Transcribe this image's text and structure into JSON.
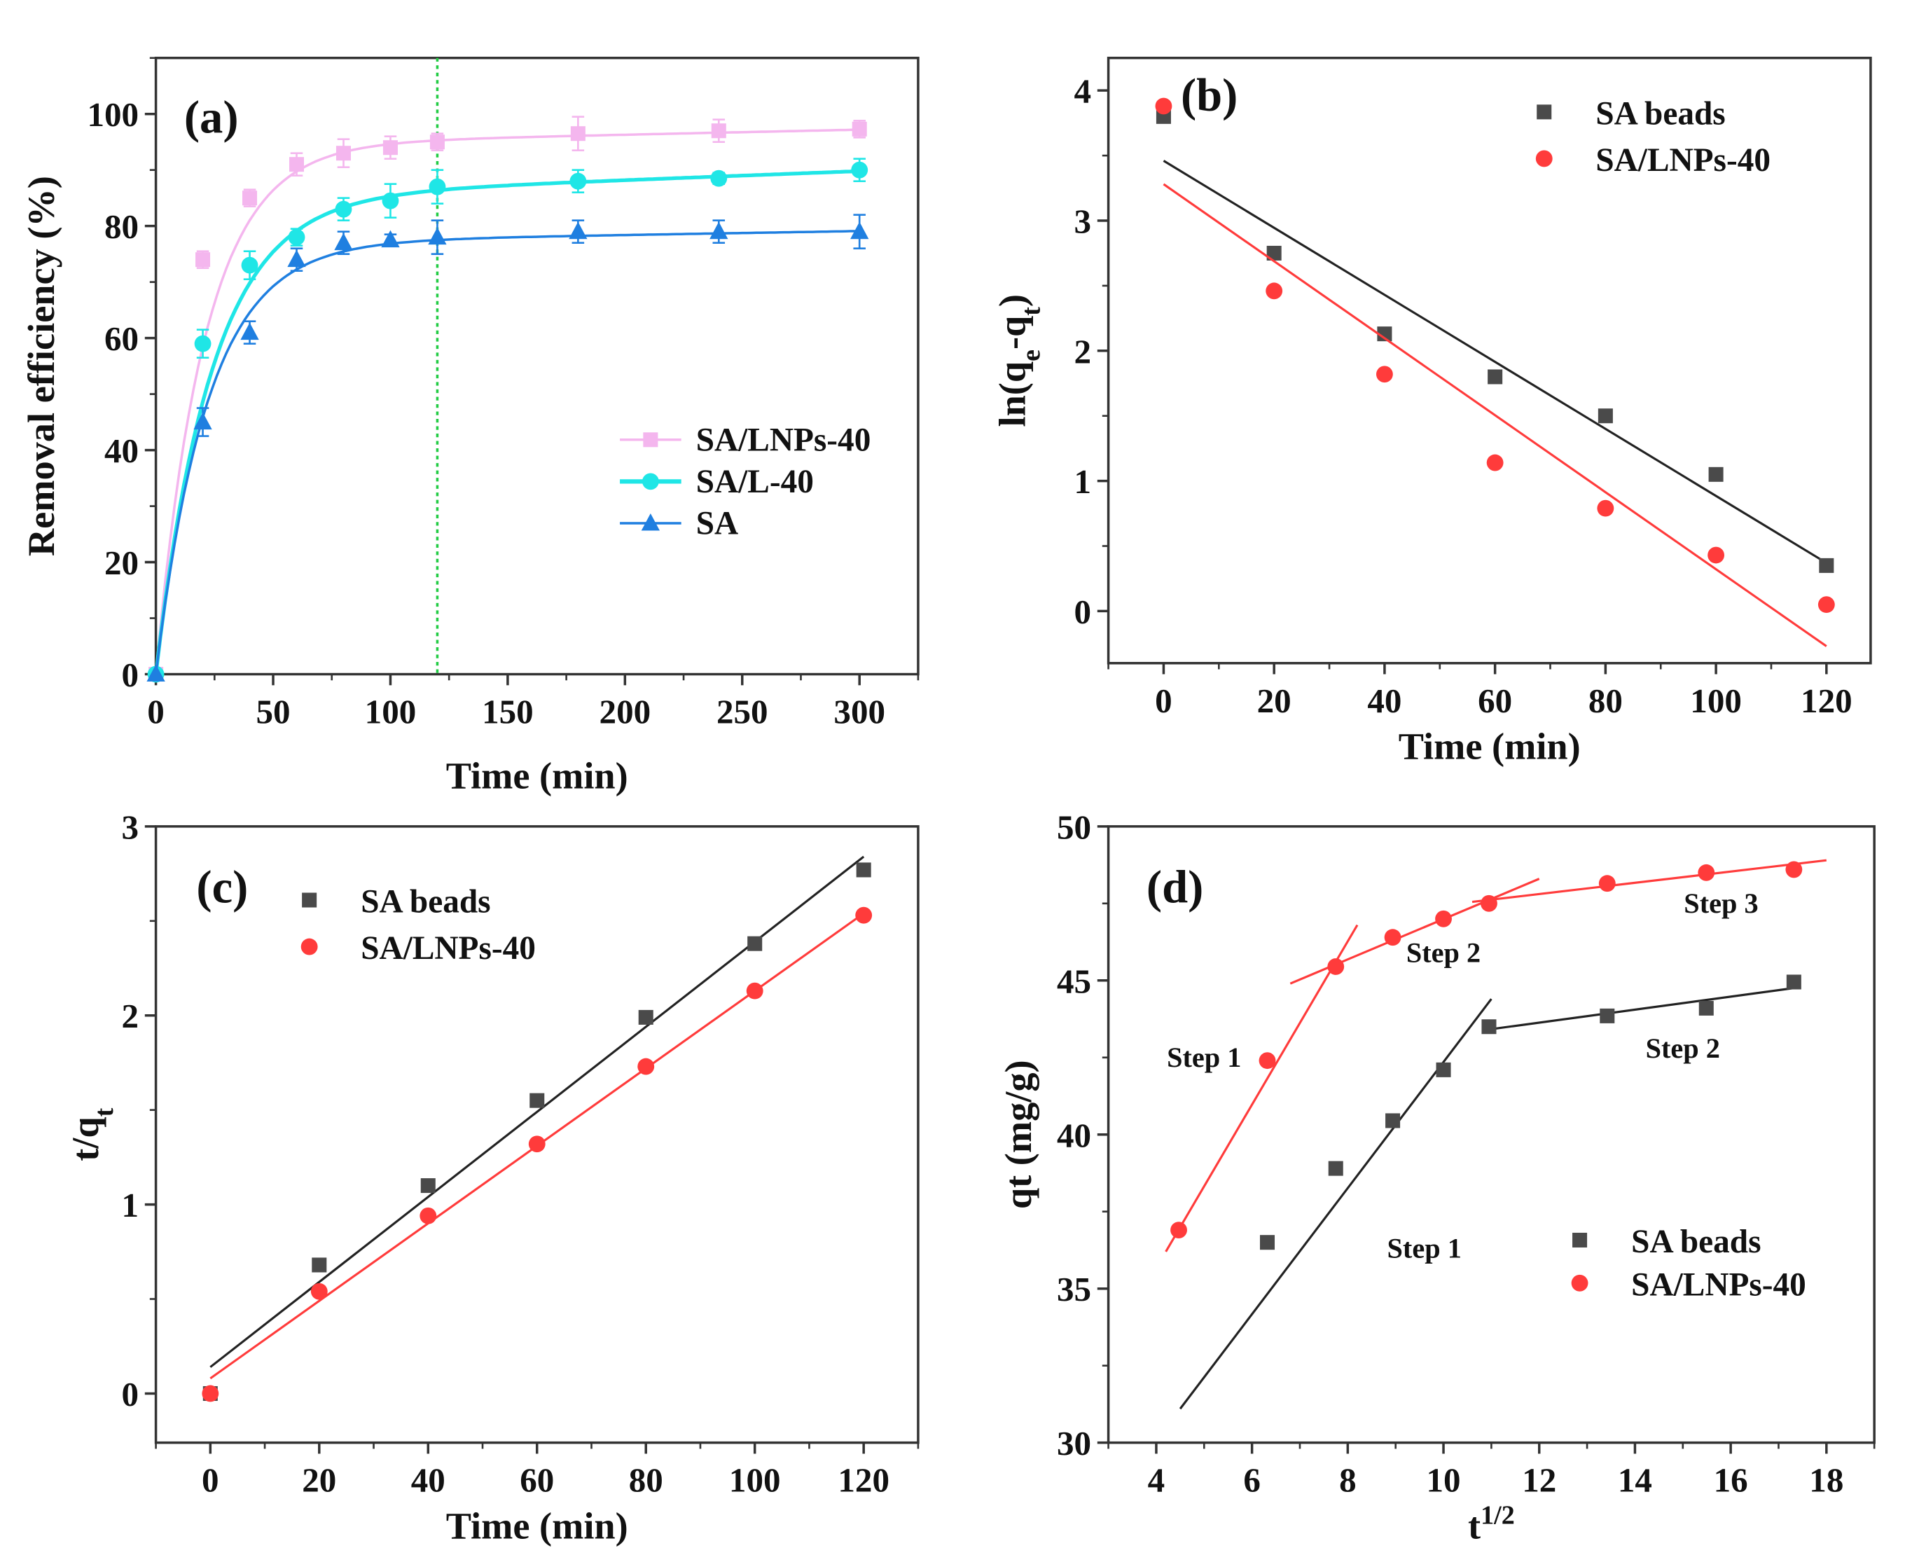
{
  "chart_data": [
    {
      "panel": "(a)",
      "type": "line",
      "xlabel": "Time (min)",
      "ylabel_parts": [
        {
          "t": "Removal efficiency  (%)"
        }
      ],
      "xlim": [
        0,
        325
      ],
      "ylim": [
        0,
        110
      ],
      "xticks": [
        0,
        50,
        100,
        150,
        200,
        250,
        300
      ],
      "xminor": 25,
      "yticks": [
        0,
        20,
        40,
        60,
        80,
        100
      ],
      "yminor": 10,
      "x": [
        0,
        20,
        40,
        60,
        80,
        100,
        120,
        180,
        240,
        300
      ],
      "legend_position": "center-right",
      "vline": {
        "x": 120,
        "color": "#22cc44",
        "style": "dotted"
      },
      "series": [
        {
          "name": "SA/LNPs-40",
          "marker": "square",
          "color": "#f4b6ee",
          "values": [
            0,
            74,
            85,
            91,
            93,
            94,
            95,
            96.5,
            97,
            97.3
          ],
          "errors": [
            0,
            1.5,
            1.5,
            2,
            2.5,
            2,
            1.5,
            3,
            2,
            1.5
          ],
          "fit": {
            "qe": 94.5,
            "k": 0.048,
            "m": 0.009
          }
        },
        {
          "name": "SA/L-40",
          "marker": "circle",
          "color": "#1fe6e6",
          "values": [
            0,
            59,
            73,
            78,
            83,
            84.5,
            87,
            88,
            88.5,
            90
          ],
          "errors": [
            0,
            2.5,
            2.5,
            1.5,
            2,
            3,
            3,
            2,
            1,
            2
          ],
          "fit": {
            "qe": 85,
            "k": 0.042,
            "m": 0.016
          }
        },
        {
          "name": "SA",
          "marker": "triangle",
          "color": "#1f7fe0",
          "values": [
            0,
            45,
            61,
            74,
            77,
            77.5,
            78,
            79,
            79,
            79
          ],
          "errors": [
            0,
            2.5,
            2,
            2,
            2,
            1,
            3,
            2,
            2,
            3
          ],
          "fit": {
            "qe": 77,
            "k": 0.045,
            "m": 0.007
          }
        }
      ]
    },
    {
      "panel": "(b)",
      "type": "scatter",
      "xlabel": "Time (min)",
      "ylabel_parts": [
        {
          "t": "ln(q"
        },
        {
          "t": "e",
          "sub": true
        },
        {
          "t": "-q"
        },
        {
          "t": "t",
          "sub": true
        },
        {
          "t": ")"
        }
      ],
      "xlim": [
        -10,
        128
      ],
      "ylim": [
        -0.4,
        4.25
      ],
      "xticks": [
        0,
        20,
        40,
        60,
        80,
        100,
        120
      ],
      "xminor": 10,
      "yticks": [
        0,
        1,
        2,
        3,
        4
      ],
      "yminor": 0.5,
      "x": [
        0,
        20,
        40,
        60,
        80,
        100,
        120
      ],
      "legend_position": "top-right",
      "series": [
        {
          "name": "SA beads",
          "marker": "square",
          "color": "#4a4a4a",
          "values": [
            3.8,
            2.75,
            2.13,
            1.8,
            1.5,
            1.05,
            0.35
          ],
          "fit_line": [
            [
              0,
              3.46
            ],
            [
              120,
              0.37
            ]
          ]
        },
        {
          "name": "SA/LNPs-40",
          "marker": "circle",
          "color": "#ff3b3b",
          "values": [
            3.88,
            2.46,
            1.82,
            1.14,
            0.79,
            0.43,
            0.05
          ],
          "fit_line": [
            [
              0,
              3.28
            ],
            [
              120,
              -0.27
            ]
          ]
        }
      ]
    },
    {
      "panel": "(c)",
      "type": "scatter",
      "xlabel": "Time (min)",
      "ylabel_parts": [
        {
          "t": "t/q"
        },
        {
          "t": "t",
          "sub": true
        }
      ],
      "xlim": [
        -10,
        130
      ],
      "ylim": [
        -0.26,
        3
      ],
      "xticks": [
        0,
        20,
        40,
        60,
        80,
        100,
        120
      ],
      "xminor": 10,
      "yticks": [
        0,
        1,
        2,
        3
      ],
      "yminor": 0.5,
      "x": [
        0,
        20,
        40,
        60,
        80,
        100,
        120
      ],
      "legend_position": "top-left",
      "series": [
        {
          "name": "SA beads",
          "marker": "square",
          "color": "#4a4a4a",
          "values": [
            0,
            0.68,
            1.1,
            1.55,
            1.99,
            2.38,
            2.77
          ],
          "fit_line": [
            [
              0,
              0.14
            ],
            [
              120,
              2.84
            ]
          ]
        },
        {
          "name": "SA/LNPs-40",
          "marker": "circle",
          "color": "#ff3b3b",
          "values": [
            0,
            0.54,
            0.94,
            1.32,
            1.73,
            2.13,
            2.53
          ],
          "fit_line": [
            [
              0,
              0.08
            ],
            [
              120,
              2.54
            ]
          ]
        }
      ]
    },
    {
      "panel": "(d)",
      "type": "scatter",
      "xlabel_parts": [
        {
          "t": "t"
        },
        {
          "t": "1/2",
          "sup": true
        }
      ],
      "ylabel_parts": [
        {
          "t": "qt (mg/g)"
        }
      ],
      "xlim": [
        3,
        19
      ],
      "ylim": [
        30,
        50
      ],
      "xticks": [
        4,
        6,
        8,
        10,
        12,
        14,
        16,
        18
      ],
      "xminor": 1,
      "yticks": [
        30,
        35,
        40,
        45,
        50
      ],
      "yminor": 2.5,
      "legend_position": "bottom-right",
      "series": [
        {
          "name": "SA beads",
          "marker": "square",
          "color": "#4a4a4a",
          "x": [
            6.32,
            7.75,
            8.94,
            10,
            10.95,
            13.42,
            15.49,
            17.32
          ],
          "values": [
            36.5,
            38.9,
            40.45,
            42.1,
            43.5,
            43.85,
            44.1,
            44.95
          ],
          "fit_lines": [
            [
              [
                4.5,
                31.1
              ],
              [
                11,
                44.4
              ]
            ],
            [
              [
                10.9,
                43.4
              ],
              [
                17.3,
                44.75
              ]
            ]
          ]
        },
        {
          "name": "SA/LNPs-40",
          "marker": "circle",
          "color": "#ff3b3b",
          "x": [
            4.47,
            6.32,
            7.75,
            8.94,
            10,
            10.95,
            13.42,
            15.49,
            17.32
          ],
          "values": [
            36.9,
            42.4,
            45.45,
            46.4,
            47.0,
            47.5,
            48.15,
            48.5,
            48.6
          ],
          "fit_lines": [
            [
              [
                4.2,
                36.2
              ],
              [
                8.2,
                46.8
              ]
            ],
            [
              [
                6.8,
                44.9
              ],
              [
                12.0,
                48.3
              ]
            ],
            [
              [
                10.6,
                47.55
              ],
              [
                18.0,
                48.9
              ]
            ]
          ]
        }
      ],
      "annotations": [
        {
          "text": "Step 1",
          "x": 5.0,
          "y": 42.2,
          "color": "#111"
        },
        {
          "text": "Step 2",
          "x": 10.0,
          "y": 45.6,
          "color": "#111"
        },
        {
          "text": "Step 3",
          "x": 15.8,
          "y": 47.2,
          "color": "#111"
        },
        {
          "text": "Step 1",
          "x": 9.6,
          "y": 36.0,
          "color": "#111"
        },
        {
          "text": "Step 2",
          "x": 15.0,
          "y": 42.5,
          "color": "#111"
        }
      ]
    }
  ]
}
